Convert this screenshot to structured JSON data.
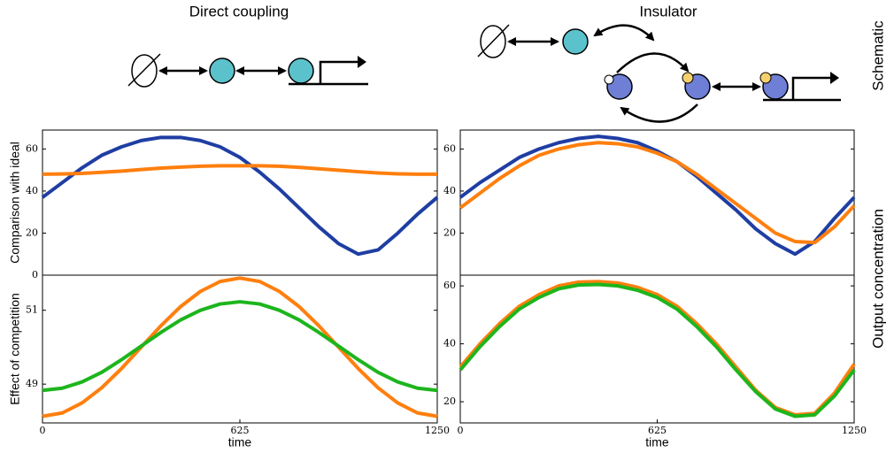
{
  "column_titles": [
    "Direct coupling",
    "Insulator"
  ],
  "row_labels": [
    "Schematic",
    "Output concentration"
  ],
  "chart_data": [
    {
      "type": "line",
      "y_label": "Comparison with ideal",
      "x": [
        0,
        62.5,
        125,
        187.5,
        250,
        312.5,
        375,
        437.5,
        500,
        562.5,
        625,
        687.5,
        750,
        812.5,
        875,
        937.5,
        1000,
        1062.5,
        1125,
        1187.5,
        1250
      ],
      "xlim": [
        0,
        1250
      ],
      "ylim": [
        0,
        69
      ],
      "yticks": [
        0,
        20,
        40,
        60
      ],
      "series": [
        {
          "color": "#1f3ea3",
          "values": [
            37,
            44,
            51,
            57,
            61,
            64,
            65.5,
            65.5,
            64,
            61,
            56,
            49,
            41,
            32,
            23,
            15,
            10,
            12,
            20,
            29,
            37
          ]
        },
        {
          "color": "#ff7f0e",
          "values": [
            48,
            48.1,
            48.4,
            48.9,
            49.5,
            50.2,
            50.9,
            51.4,
            51.8,
            52,
            52,
            52,
            51.8,
            51.3,
            50.6,
            49.9,
            49.2,
            48.6,
            48.2,
            48,
            48
          ]
        }
      ]
    },
    {
      "type": "line",
      "x": [
        0,
        62.5,
        125,
        187.5,
        250,
        312.5,
        375,
        437.5,
        500,
        562.5,
        625,
        687.5,
        750,
        812.5,
        875,
        937.5,
        1000,
        1062.5,
        1125,
        1187.5,
        1250
      ],
      "xlim": [
        0,
        1250
      ],
      "ylim": [
        0,
        69
      ],
      "yticks": [
        20,
        40,
        60
      ],
      "series": [
        {
          "color": "#1f3ea3",
          "values": [
            37,
            44,
            50,
            56,
            60,
            63,
            65,
            66,
            65,
            63,
            59,
            54,
            47,
            39,
            31,
            22,
            15,
            10,
            16,
            27,
            37
          ]
        },
        {
          "color": "#ff7f0e",
          "values": [
            32,
            39,
            46,
            52,
            57,
            60,
            62,
            63,
            62.5,
            61,
            58,
            54,
            48,
            41,
            34,
            27,
            20,
            16,
            15.5,
            23,
            33
          ]
        }
      ]
    },
    {
      "type": "line",
      "y_label": "Effect of competition",
      "x_label": "time",
      "x": [
        0,
        62.5,
        125,
        187.5,
        250,
        312.5,
        375,
        437.5,
        500,
        562.5,
        625,
        687.5,
        750,
        812.5,
        875,
        937.5,
        1000,
        1062.5,
        1125,
        1187.5,
        1250
      ],
      "xlim": [
        0,
        1250
      ],
      "xticks": [
        0,
        625,
        1250
      ],
      "ylim": [
        47.95,
        51.95
      ],
      "yticks": [
        49,
        51
      ],
      "series": [
        {
          "color": "#ff7f0e",
          "values": [
            48.13,
            48.22,
            48.49,
            48.9,
            49.42,
            50.0,
            50.58,
            51.1,
            51.51,
            51.78,
            51.87,
            51.78,
            51.51,
            51.1,
            50.58,
            50.0,
            49.42,
            48.9,
            48.49,
            48.22,
            48.13
          ]
        },
        {
          "color": "#1db51d",
          "values": [
            48.83,
            48.89,
            49.06,
            49.32,
            49.66,
            50.03,
            50.4,
            50.74,
            51.0,
            51.17,
            51.23,
            51.17,
            51.0,
            50.74,
            50.4,
            50.03,
            49.66,
            49.32,
            49.06,
            48.89,
            48.83
          ]
        }
      ]
    },
    {
      "type": "line",
      "x_label": "time",
      "x": [
        0,
        62.5,
        125,
        187.5,
        250,
        312.5,
        375,
        437.5,
        500,
        562.5,
        625,
        687.5,
        750,
        812.5,
        875,
        937.5,
        1000,
        1062.5,
        1125,
        1187.5,
        1250
      ],
      "xlim": [
        0,
        1250
      ],
      "xticks": [
        0,
        625,
        1250
      ],
      "ylim": [
        12.7,
        63.7
      ],
      "yticks": [
        20,
        40,
        60
      ],
      "series": [
        {
          "color": "#ff7f0e",
          "values": [
            32,
            40,
            47,
            53,
            57,
            60,
            61.3,
            61.5,
            61,
            59.5,
            57,
            53,
            47,
            40,
            32,
            24,
            18,
            15.5,
            16,
            23,
            33
          ]
        },
        {
          "color": "#1db51d",
          "values": [
            31,
            39,
            46,
            52,
            56,
            59,
            60.3,
            60.5,
            60,
            58.5,
            56,
            52,
            46,
            39,
            31,
            23.5,
            17.5,
            15,
            15.5,
            22,
            31
          ]
        }
      ]
    }
  ]
}
